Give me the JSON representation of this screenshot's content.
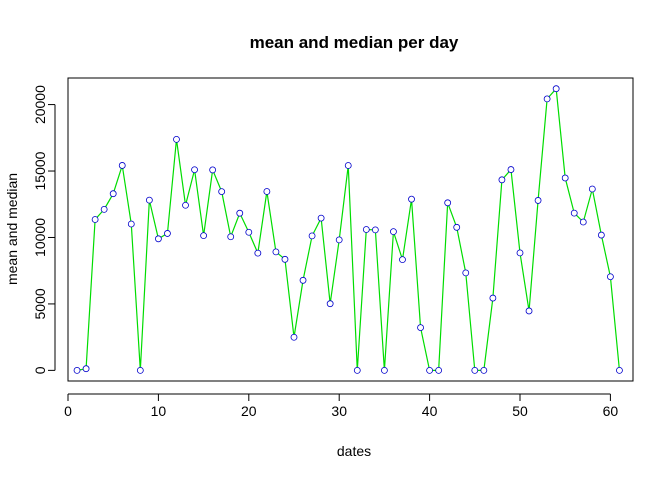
{
  "chart_data": {
    "type": "line",
    "title": "mean and median per day",
    "xlabel": "dates",
    "ylabel": "mean and median",
    "xlim": [
      0,
      62.5
    ],
    "ylim": [
      -800,
      22000
    ],
    "x_ticks": [
      0,
      10,
      20,
      30,
      40,
      50,
      60
    ],
    "y_ticks": [
      0,
      5000,
      10000,
      15000,
      20000
    ],
    "grid": false,
    "colors": {
      "line": "#00dd00",
      "point_stroke": "#0000cc",
      "point_fill": "#ffffff",
      "axis": "#000000"
    },
    "series": [
      {
        "x": [
          1,
          2,
          3,
          4,
          5,
          6,
          7,
          8,
          9,
          10,
          11,
          12,
          13,
          14,
          15,
          16,
          17,
          18,
          19,
          20,
          21,
          22,
          23,
          24,
          25,
          26,
          27,
          28,
          29,
          30,
          31,
          32,
          33,
          34,
          35,
          36,
          37,
          38,
          39,
          40,
          41,
          42,
          43,
          44,
          45,
          46,
          47,
          48,
          49,
          50,
          51,
          52,
          53,
          54,
          55,
          56,
          57,
          58,
          59,
          60,
          61
        ],
        "y": [
          0,
          126,
          11352,
          12116,
          13294,
          15420,
          11015,
          0,
          12811,
          9900,
          10304,
          17382,
          12426,
          15098,
          10139,
          15084,
          13452,
          10056,
          11829,
          10395,
          8821,
          13460,
          8918,
          8355,
          2492,
          6778,
          10119,
          11458,
          5018,
          9819,
          15414,
          0,
          10600,
          10571,
          0,
          10439,
          8334,
          12883,
          3219,
          0,
          0,
          12608,
          10765,
          7336,
          0,
          0,
          5441,
          14339,
          15110,
          8841,
          4472,
          12787,
          20427,
          21194,
          14478,
          11834,
          11162,
          13646,
          10183,
          7047,
          0
        ]
      }
    ]
  }
}
